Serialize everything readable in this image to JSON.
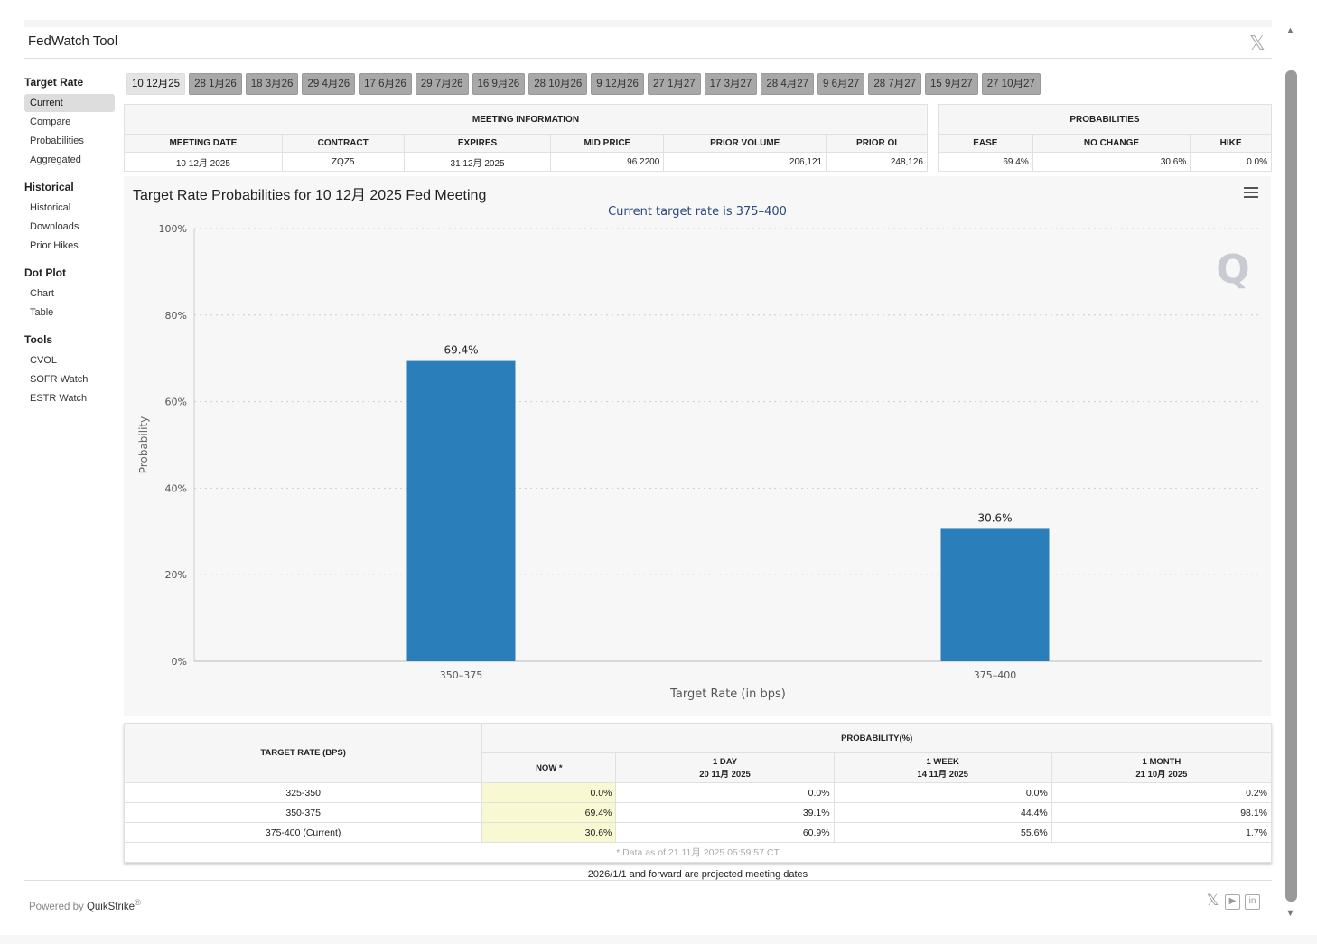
{
  "header": {
    "title": "FedWatch Tool",
    "close_icon": "x-logo-icon"
  },
  "sidebar": [
    {
      "heading": "Target Rate",
      "items": [
        "Current",
        "Compare",
        "Probabilities",
        "Aggregated"
      ],
      "active": 0
    },
    {
      "heading": "Historical",
      "items": [
        "Historical",
        "Downloads",
        "Prior Hikes"
      ]
    },
    {
      "heading": "Dot Plot",
      "items": [
        "Chart",
        "Table"
      ]
    },
    {
      "heading": "Tools",
      "items": [
        "CVOL",
        "SOFR Watch",
        "ESTR Watch"
      ]
    }
  ],
  "tabs": [
    "10 12月25",
    "28 1月26",
    "18 3月26",
    "29 4月26",
    "17 6月26",
    "29 7月26",
    "16 9月26",
    "28 10月26",
    "9 12月26",
    "27 1月27",
    "17 3月27",
    "28 4月27",
    "9 6月27",
    "28 7月27",
    "15 9月27",
    "27 10月27"
  ],
  "meeting_info": {
    "title": "MEETING INFORMATION",
    "headers": [
      "MEETING DATE",
      "CONTRACT",
      "EXPIRES",
      "MID PRICE",
      "PRIOR VOLUME",
      "PRIOR OI"
    ],
    "row": [
      "10 12月 2025",
      "ZQZ5",
      "31 12月 2025",
      "96.2200",
      "206,121",
      "248,126"
    ]
  },
  "probabilities": {
    "title": "PROBABILITIES",
    "headers": [
      "EASE",
      "NO CHANGE",
      "HIKE"
    ],
    "row": [
      "69.4%",
      "30.6%",
      "0.0%"
    ]
  },
  "chart_data": {
    "type": "bar",
    "title": "Target Rate Probabilities for 10 12月 2025 Fed Meeting",
    "subtitle": "Current target rate is 375–400",
    "xlabel": "Target Rate (in bps)",
    "ylabel": "Probability",
    "categories": [
      "350–375",
      "375–400"
    ],
    "values": [
      69.4,
      30.6
    ],
    "data_labels": [
      "69.4%",
      "30.6%"
    ],
    "ylim": [
      0,
      100
    ],
    "yticks": [
      "0%",
      "20%",
      "40%",
      "60%",
      "80%",
      "100%"
    ],
    "grid": true,
    "bar_color": "#2a7fba"
  },
  "bottom_table": {
    "col1": "TARGET RATE (BPS)",
    "group": "PROBABILITY(%)",
    "cols": [
      {
        "l1": "NOW *",
        "l2": ""
      },
      {
        "l1": "1 DAY",
        "l2": "20 11月 2025"
      },
      {
        "l1": "1 WEEK",
        "l2": "14 11月 2025"
      },
      {
        "l1": "1 MONTH",
        "l2": "21 10月 2025"
      }
    ],
    "rows": [
      [
        "325-350",
        "0.0%",
        "0.0%",
        "0.0%",
        "0.2%"
      ],
      [
        "350-375",
        "69.4%",
        "39.1%",
        "44.4%",
        "98.1%"
      ],
      [
        "375-400 (Current)",
        "30.6%",
        "60.9%",
        "55.6%",
        "1.7%"
      ]
    ],
    "footnote": "* Data as of 21 11月 2025 05:59:57 CT"
  },
  "note": "2026/1/1 and forward are projected meeting dates",
  "footer": {
    "powered": "Powered by",
    "brand": "QuikStrike",
    "reg": "®"
  }
}
